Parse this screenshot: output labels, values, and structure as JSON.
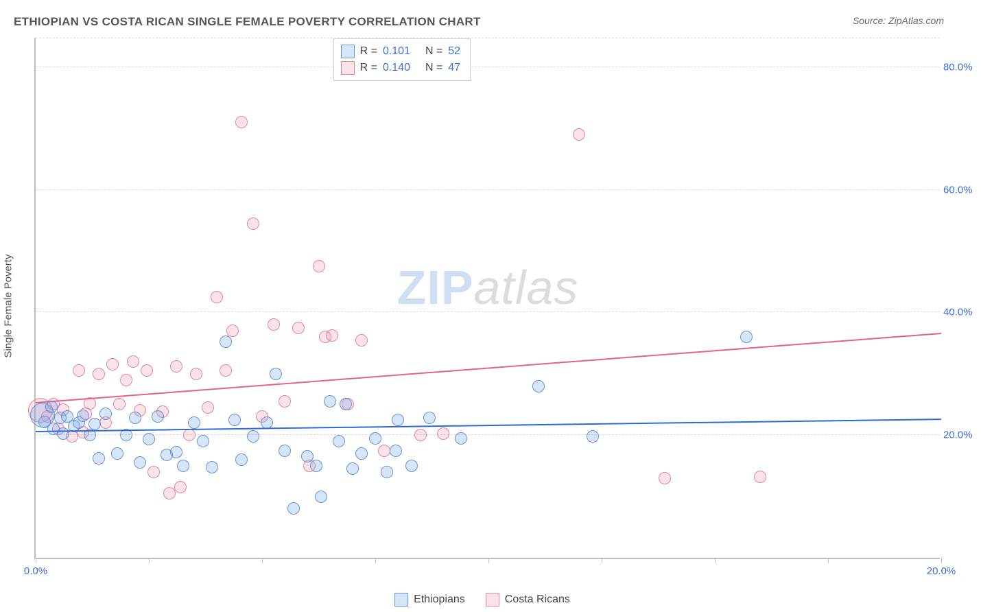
{
  "title": "ETHIOPIAN VS COSTA RICAN SINGLE FEMALE POVERTY CORRELATION CHART",
  "source": "Source: ZipAtlas.com",
  "y_axis_title": "Single Female Poverty",
  "watermark": {
    "zip": "ZIP",
    "atlas": "atlas"
  },
  "chart": {
    "type": "scatter",
    "xlim": [
      0,
      20
    ],
    "ylim": [
      0,
      85
    ],
    "x_ticks": [
      0,
      2.5,
      5,
      7.5,
      10,
      12.5,
      15,
      17.5,
      20
    ],
    "x_tick_labels": {
      "0": "0.0%",
      "20": "20.0%"
    },
    "y_gridlines": [
      20,
      40,
      60,
      80
    ],
    "y_tick_labels": {
      "20": "20.0%",
      "40": "40.0%",
      "60": "60.0%",
      "80": "80.0%"
    },
    "background_color": "#ffffff",
    "grid_color": "#d9d9d9",
    "axis_color": "#bfbfbf",
    "tick_label_color": "#3a6fd8",
    "title_color": "#555555",
    "title_fontsize": 17,
    "label_fontsize": 15,
    "marker_radius": 9,
    "big_marker_radius": 18,
    "marker_fill_opacity": 0.25,
    "marker_stroke_opacity": 0.9
  },
  "series": {
    "ethiopians": {
      "label": "Ethiopians",
      "color": "#6fa3e8",
      "fill": "rgba(111,163,232,0.28)",
      "stroke": "rgba(90,140,210,0.9)",
      "r_value": "0.101",
      "n_value": "52",
      "trend": {
        "x1": 0,
        "y1": 20.5,
        "x2": 20,
        "y2": 22.5,
        "color": "#2d6cd6"
      },
      "points": [
        [
          0.15,
          23.3,
          "big"
        ],
        [
          0.2,
          22.1
        ],
        [
          0.35,
          24.6
        ],
        [
          0.4,
          21.0
        ],
        [
          0.55,
          22.8
        ],
        [
          0.6,
          20.3
        ],
        [
          0.7,
          23.0
        ],
        [
          0.85,
          21.5
        ],
        [
          0.95,
          22.0
        ],
        [
          1.05,
          23.2
        ],
        [
          1.2,
          20.0
        ],
        [
          1.3,
          21.8
        ],
        [
          1.4,
          16.2
        ],
        [
          1.55,
          23.5
        ],
        [
          1.8,
          17.0
        ],
        [
          2.0,
          20.0
        ],
        [
          2.2,
          22.8
        ],
        [
          2.3,
          15.5
        ],
        [
          2.5,
          19.4
        ],
        [
          2.7,
          23.0
        ],
        [
          2.9,
          16.8
        ],
        [
          3.1,
          17.2
        ],
        [
          3.25,
          15.0
        ],
        [
          3.5,
          22.0
        ],
        [
          3.7,
          19.0
        ],
        [
          3.9,
          14.8
        ],
        [
          4.2,
          35.2
        ],
        [
          4.4,
          22.5
        ],
        [
          4.55,
          16.0
        ],
        [
          4.8,
          19.8
        ],
        [
          5.1,
          22.0
        ],
        [
          5.3,
          30.0
        ],
        [
          5.5,
          17.5
        ],
        [
          5.7,
          8.0
        ],
        [
          6.0,
          16.5
        ],
        [
          6.2,
          15.0
        ],
        [
          6.3,
          10.0
        ],
        [
          6.5,
          25.5
        ],
        [
          6.7,
          19.0
        ],
        [
          6.85,
          25.0
        ],
        [
          7.0,
          14.5
        ],
        [
          7.2,
          17.0
        ],
        [
          7.5,
          19.5
        ],
        [
          7.75,
          14.0
        ],
        [
          7.95,
          17.5
        ],
        [
          8.0,
          22.5
        ],
        [
          8.3,
          15.0
        ],
        [
          8.7,
          22.8
        ],
        [
          9.4,
          19.5
        ],
        [
          11.1,
          28.0
        ],
        [
          12.3,
          19.8
        ],
        [
          15.7,
          36.0
        ]
      ]
    },
    "costa_ricans": {
      "label": "Costa Ricans",
      "color": "#f19ab4",
      "fill": "rgba(241,154,180,0.28)",
      "stroke": "rgba(230,120,150,0.9)",
      "r_value": "0.140",
      "n_value": "47",
      "trend": {
        "x1": 0,
        "y1": 25.2,
        "x2": 20,
        "y2": 36.5,
        "color": "#e85f8b"
      },
      "points": [
        [
          0.1,
          24.0,
          "big"
        ],
        [
          0.25,
          23.0
        ],
        [
          0.4,
          25.0
        ],
        [
          0.5,
          21.0
        ],
        [
          0.6,
          24.2
        ],
        [
          0.8,
          19.8
        ],
        [
          0.95,
          30.5
        ],
        [
          1.1,
          23.5
        ],
        [
          1.2,
          25.2
        ],
        [
          1.4,
          30.0
        ],
        [
          1.55,
          22.0
        ],
        [
          1.7,
          31.5
        ],
        [
          1.85,
          25.0
        ],
        [
          2.0,
          29.0
        ],
        [
          2.15,
          32.0
        ],
        [
          2.3,
          24.0
        ],
        [
          2.45,
          30.5
        ],
        [
          2.6,
          14.0
        ],
        [
          2.8,
          23.8
        ],
        [
          2.95,
          10.5
        ],
        [
          3.1,
          31.2
        ],
        [
          3.4,
          20.0
        ],
        [
          3.55,
          30.0
        ],
        [
          3.8,
          24.5
        ],
        [
          4.0,
          42.5
        ],
        [
          4.2,
          30.5
        ],
        [
          4.35,
          37.0
        ],
        [
          4.55,
          71.0
        ],
        [
          4.8,
          54.5
        ],
        [
          5.0,
          23.0
        ],
        [
          5.25,
          38.0
        ],
        [
          5.5,
          25.5
        ],
        [
          5.8,
          37.5
        ],
        [
          6.05,
          15.0
        ],
        [
          6.25,
          47.5
        ],
        [
          6.4,
          36.0
        ],
        [
          6.55,
          36.2
        ],
        [
          6.9,
          25.0
        ],
        [
          7.2,
          35.5
        ],
        [
          7.7,
          17.5
        ],
        [
          8.5,
          20.0
        ],
        [
          9.0,
          20.2
        ],
        [
          12.0,
          69.0
        ],
        [
          13.9,
          13.0
        ],
        [
          16.0,
          13.2
        ],
        [
          3.2,
          11.5
        ],
        [
          1.05,
          20.5
        ]
      ]
    }
  },
  "legend_top": {
    "r_label": "R =",
    "n_label": "N ="
  }
}
